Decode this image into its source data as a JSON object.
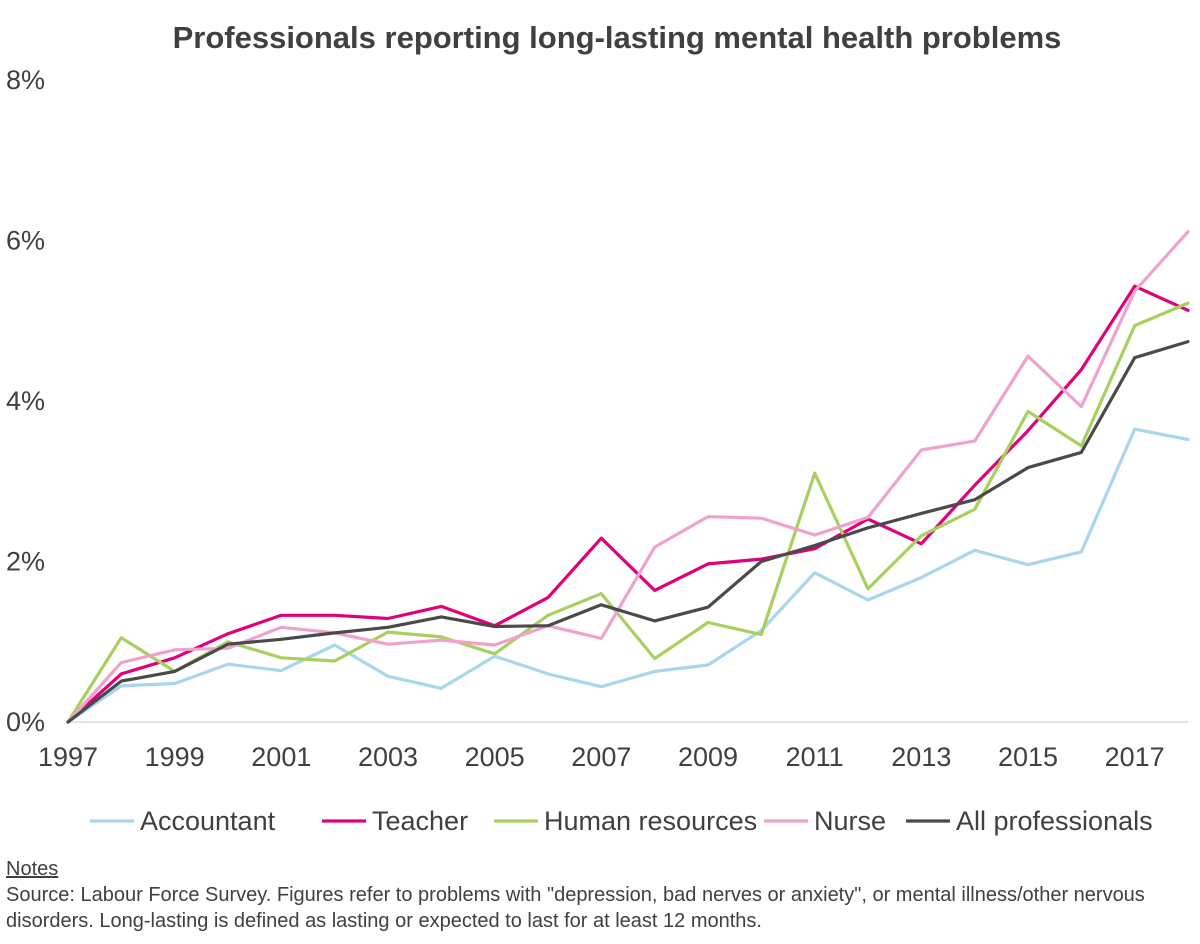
{
  "chart_data": {
    "type": "line",
    "title": "Professionals reporting long-lasting mental health problems",
    "xlabel": "",
    "ylabel": "",
    "ylim": [
      0,
      8
    ],
    "y_ticks": [
      0,
      2,
      4,
      6,
      8
    ],
    "y_tick_labels": [
      "0%",
      "2%",
      "4%",
      "6%",
      "8%"
    ],
    "x": [
      1997,
      1998,
      1999,
      2000,
      2001,
      2002,
      2003,
      2004,
      2005,
      2006,
      2007,
      2008,
      2009,
      2010,
      2011,
      2012,
      2013,
      2014,
      2015,
      2016,
      2017,
      2018
    ],
    "x_tick_labels": [
      "1997",
      "1999",
      "2001",
      "2003",
      "2005",
      "2007",
      "2009",
      "2011",
      "2013",
      "2015",
      "2017"
    ],
    "x_tick_values": [
      1997,
      1999,
      2001,
      2003,
      2005,
      2007,
      2009,
      2011,
      2013,
      2015,
      2017
    ],
    "legend_position": "bottom",
    "series": [
      {
        "name": "Accountant",
        "color": "#a9d6ea",
        "values": [
          0.0,
          0.45,
          0.48,
          0.72,
          0.64,
          0.96,
          0.57,
          0.42,
          0.82,
          0.6,
          0.44,
          0.63,
          0.71,
          1.14,
          1.86,
          1.52,
          1.8,
          2.14,
          1.96,
          2.12,
          3.65,
          3.52
        ]
      },
      {
        "name": "Teacher",
        "color": "#e0007a",
        "values": [
          0.0,
          0.6,
          0.8,
          1.1,
          1.33,
          1.33,
          1.29,
          1.44,
          1.2,
          1.55,
          2.29,
          1.64,
          1.97,
          2.03,
          2.16,
          2.53,
          2.22,
          2.95,
          3.63,
          4.39,
          5.43,
          5.13
        ]
      },
      {
        "name": "Human resources",
        "color": "#a9cf5f",
        "values": [
          0.0,
          1.05,
          0.63,
          1.0,
          0.8,
          0.76,
          1.12,
          1.06,
          0.85,
          1.33,
          1.6,
          0.79,
          1.24,
          1.09,
          3.1,
          1.66,
          2.32,
          2.65,
          3.87,
          3.44,
          4.94,
          5.22
        ]
      },
      {
        "name": "Nurse",
        "color": "#efa3cc",
        "values": [
          0.0,
          0.74,
          0.9,
          0.92,
          1.18,
          1.11,
          0.97,
          1.02,
          0.96,
          1.2,
          1.04,
          2.18,
          2.56,
          2.54,
          2.33,
          2.55,
          3.39,
          3.5,
          4.56,
          3.93,
          5.37,
          6.11
        ]
      },
      {
        "name": "All professionals",
        "color": "#4a4a4a",
        "values": [
          0.0,
          0.51,
          0.63,
          0.97,
          1.03,
          1.11,
          1.18,
          1.31,
          1.19,
          1.2,
          1.46,
          1.26,
          1.43,
          2.0,
          2.2,
          2.42,
          2.6,
          2.77,
          3.17,
          3.36,
          4.54,
          4.74
        ]
      }
    ]
  },
  "notes": {
    "title": "Notes",
    "text": "Source: Labour Force Survey. Figures refer to problems with \"depression, bad nerves or anxiety\", or mental illness/other nervous disorders. Long-lasting is defined as lasting or expected to last for at least 12 months."
  }
}
